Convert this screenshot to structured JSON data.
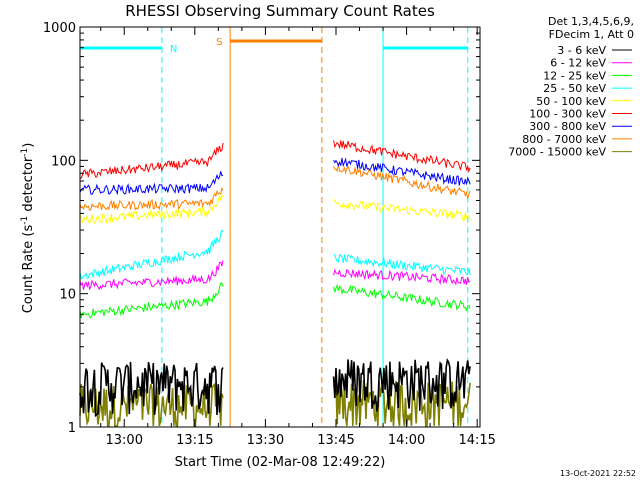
{
  "chart_data": {
    "type": "line",
    "title": "RHESSI Observing Summary Count Rates",
    "xlabel": "Start Time (02-Mar-08 12:49:22)",
    "ylabel_prefix": "Count Rate (s",
    "ylabel_sup1": "-1",
    "ylabel_mid": " detector",
    "ylabel_sup2": "-1",
    "ylabel_suffix": ")",
    "y_scale": "log",
    "ylim": [
      1,
      1000
    ],
    "xlim_minutes": [
      -9.4,
      75.6
    ],
    "x_tick_labels": [
      "13:00",
      "13:15",
      "13:30",
      "13:45",
      "14:00",
      "14:15"
    ],
    "x_tick_minutes": [
      0,
      15,
      30,
      45,
      60,
      75
    ],
    "y_tick_labels": [
      "1",
      "10",
      "100",
      "1000"
    ],
    "y_tick_values": [
      1,
      10,
      100,
      1000
    ],
    "legend_header": [
      "Det 1,3,4,5,6,9,",
      "FDecim 1, Att 0"
    ],
    "legend_placement": "right",
    "timestamp": "13-Oct-2021 22:52",
    "flag_labels": {
      "night": "N",
      "saa": "S"
    },
    "night_segments_minutes": [
      [
        -9.4,
        8.0
      ],
      [
        55.0,
        73.0
      ]
    ],
    "night_lines_minutes": [
      -9.4,
      8.0,
      55.0,
      73.0
    ],
    "saa_segments_minutes": [
      [
        22.5,
        42.0
      ]
    ],
    "saa_lines_minutes": [
      22.5,
      42.0
    ],
    "data_gap_minutes": [
      21.0,
      44.5
    ],
    "series": [
      {
        "name": "3 - 6 keV",
        "color": "#000000",
        "before": [
          2.2,
          2.2
        ],
        "after": [
          2.4,
          2.3
        ]
      },
      {
        "name": "6 - 12 keV",
        "color": "#ff00ff",
        "before": [
          11.5,
          13.0
        ],
        "after": [
          14.5,
          12.5
        ]
      },
      {
        "name": "12 - 25 keV",
        "color": "#00ff00",
        "before": [
          7.0,
          9.0
        ],
        "after": [
          11.0,
          8.0
        ]
      },
      {
        "name": "25 - 50 keV",
        "color": "#00ffff",
        "before": [
          13.5,
          22.0
        ],
        "after": [
          18.5,
          14.5
        ]
      },
      {
        "name": "50 - 100 keV",
        "color": "#ffff00",
        "before": [
          36,
          42
        ],
        "after": [
          48,
          38
        ]
      },
      {
        "name": "100 - 300 keV",
        "color": "#ff0000",
        "before": [
          78,
          100
        ],
        "after": [
          135,
          88
        ]
      },
      {
        "name": "300 - 800 keV",
        "color": "#0000ff",
        "before": [
          60,
          62
        ],
        "after": [
          100,
          68
        ]
      },
      {
        "name": "800 - 7000 keV",
        "color": "#ff8000",
        "before": [
          45,
          48
        ],
        "after": [
          90,
          55
        ]
      },
      {
        "name": "7000 - 15000 keV",
        "color": "#808000",
        "before": [
          1.5,
          1.5
        ],
        "after": [
          1.6,
          1.6
        ]
      }
    ],
    "colors": {
      "background": "#ffffff",
      "axes": "#000000",
      "night": "#00ffff",
      "saa": "#ff8000"
    }
  }
}
